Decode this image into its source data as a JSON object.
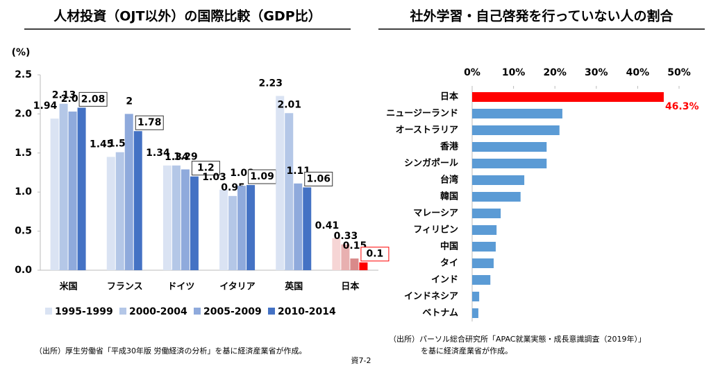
{
  "chart_data": [
    {
      "type": "bar",
      "title": "人材投資（OJT以外）の国際比較（GDP比）",
      "y_label": "(%)",
      "categories": [
        "米国",
        "フランス",
        "ドイツ",
        "イタリア",
        "英国",
        "日本"
      ],
      "series": [
        {
          "name": "1995-1999",
          "color": "#dae3f3",
          "colors": [
            "#dae3f3",
            "#dae3f3",
            "#dae3f3",
            "#dae3f3",
            "#dae3f3",
            "#f6d5d5"
          ],
          "values": [
            1.94,
            1.45,
            1.34,
            1.03,
            2.23,
            0.41
          ]
        },
        {
          "name": "2000-2004",
          "color": "#b4c7e7",
          "colors": [
            "#b4c7e7",
            "#b4c7e7",
            "#b4c7e7",
            "#b4c7e7",
            "#b4c7e7",
            "#e8b0b0"
          ],
          "values": [
            2.13,
            1.51,
            1.34,
            0.95,
            2.01,
            0.33
          ]
        },
        {
          "name": "2005-2009",
          "color": "#8faadc",
          "colors": [
            "#8faadc",
            "#8faadc",
            "#8faadc",
            "#8faadc",
            "#8faadc",
            "#d98a8a"
          ],
          "values": [
            2.03,
            2,
            1.29,
            1.08,
            1.11,
            0.15
          ]
        },
        {
          "name": "2010-2014",
          "color": "#4472c4",
          "colors": [
            "#4472c4",
            "#4472c4",
            "#4472c4",
            "#4472c4",
            "#4472c4",
            "#ff0000"
          ],
          "values": [
            2.08,
            1.78,
            1.2,
            1.09,
            1.06,
            0.1
          ],
          "labels_boxed": true
        }
      ],
      "ylim": [
        0,
        2.5
      ],
      "yticks": [
        {
          "value": 0,
          "label": "0.0"
        },
        {
          "value": 0.5,
          "label": "0.5"
        },
        {
          "value": 1,
          "label": "1.0"
        },
        {
          "value": 1.5,
          "label": "1.5"
        },
        {
          "value": 2,
          "label": "2.0"
        },
        {
          "value": 2.5,
          "label": "2.5"
        }
      ],
      "legend": "bottom",
      "source": [
        "（出所）厚生労働省「平成30年版 労働経済の分析」を基に経済産業省が作成。"
      ]
    },
    {
      "type": "barh",
      "title": "社外学習・自己啓発を行っていない人の割合",
      "categories": [
        "日本",
        "ニュージーランド",
        "オーストラリア",
        "香港",
        "シンガポール",
        "台湾",
        "韓国",
        "マレーシア",
        "フィリピン",
        "中国",
        "タイ",
        "インド",
        "インドネシア",
        "ベトナム"
      ],
      "values": [
        46.3,
        21.8,
        21.1,
        18,
        18,
        12.6,
        11.7,
        6.9,
        5.9,
        5.7,
        5.2,
        4.4,
        1.7,
        1.5
      ],
      "value_labels": [
        "46.3%",
        null,
        null,
        null,
        null,
        null,
        null,
        null,
        null,
        null,
        null,
        null,
        null,
        null
      ],
      "colors": [
        "#ff0000",
        "#5b9bd5",
        "#5b9bd5",
        "#5b9bd5",
        "#5b9bd5",
        "#5b9bd5",
        "#5b9bd5",
        "#5b9bd5",
        "#5b9bd5",
        "#5b9bd5",
        "#5b9bd5",
        "#5b9bd5",
        "#5b9bd5",
        "#5b9bd5"
      ],
      "label_color": "#ff0000",
      "xlim": [
        0,
        50
      ],
      "xticks": [
        {
          "value": 0,
          "label": "0%"
        },
        {
          "value": 10,
          "label": "10%"
        },
        {
          "value": 20,
          "label": "20%"
        },
        {
          "value": 30,
          "label": "30%"
        },
        {
          "value": 40,
          "label": "40%"
        },
        {
          "value": 50,
          "label": "50%"
        }
      ],
      "source": [
        "（出所）パーソル総合研究所「APAC就業実態・成長意識調査（2019年）」",
        "を基に経済産業省が作成。"
      ]
    }
  ],
  "page_number": "資7-2"
}
